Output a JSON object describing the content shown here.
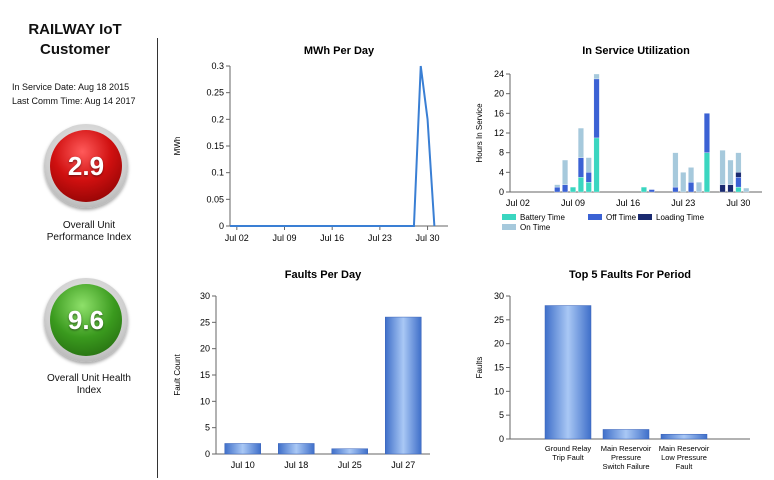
{
  "header": {
    "title_line1": "RAILWAY IoT",
    "title_line2": "Customer"
  },
  "meta": {
    "in_service": "In Service Date: Aug 18 2015",
    "last_comm": "Last Comm Time: Aug 14 2017"
  },
  "kpis": [
    {
      "value": "2.9",
      "label_line1": "Overall Unit",
      "label_line2": "Performance Index",
      "color": "#d01010"
    },
    {
      "value": "9.6",
      "label_line1": "Overall Unit Health",
      "label_line2": "Index",
      "color": "#3a9a1e"
    }
  ],
  "chart_data": [
    {
      "id": "mwh",
      "type": "line",
      "title": "MWh Per Day",
      "ylabel": "MWh",
      "ylim": [
        0,
        0.3
      ],
      "yticks": [
        "0",
        "0.05",
        "0.1",
        "0.15",
        "0.2",
        "0.25",
        "0.3"
      ],
      "xticks": [
        "Jul 02",
        "Jul 09",
        "Jul 16",
        "Jul 23",
        "Jul 30"
      ],
      "x": [
        1,
        2,
        3,
        4,
        5,
        6,
        7,
        8,
        9,
        10,
        11,
        12,
        13,
        14,
        15,
        16,
        17,
        18,
        19,
        20,
        21,
        22,
        23,
        24,
        25,
        26,
        27,
        28,
        29,
        30,
        31
      ],
      "values": [
        0,
        0,
        0,
        0,
        0,
        0,
        0,
        0,
        0,
        0,
        0,
        0,
        0,
        0,
        0,
        0,
        0,
        0,
        0,
        0,
        0,
        0,
        0,
        0,
        0,
        0,
        0,
        0,
        0.3,
        0.2,
        0
      ],
      "color": "#3a7fd4"
    },
    {
      "id": "util",
      "type": "bar",
      "title": "In Service Utilization",
      "ylabel": "Hours In Service",
      "ylim": [
        0,
        24
      ],
      "yticks": [
        "0",
        "4",
        "8",
        "12",
        "16",
        "20",
        "24"
      ],
      "xticks": [
        "Jul 02",
        "Jul 09",
        "Jul 16",
        "Jul 23",
        "Jul 30"
      ],
      "days": [
        7,
        8,
        9,
        10,
        11,
        12,
        13,
        14,
        15,
        16,
        17,
        18,
        19,
        20,
        21,
        22,
        23,
        24,
        25,
        26,
        27,
        28,
        29,
        30,
        31
      ],
      "series": [
        {
          "name": "Battery Time",
          "color": "#3ad6c0",
          "values": [
            0,
            0,
            1,
            3,
            2,
            11,
            0,
            0,
            0,
            0,
            0,
            1,
            0,
            0,
            0,
            0,
            0,
            0,
            0,
            8,
            0,
            0,
            0,
            1,
            0
          ]
        },
        {
          "name": "Off Time",
          "color": "#3b62d4",
          "values": [
            1,
            1.5,
            0,
            4,
            2,
            12,
            0,
            0,
            0,
            0,
            0,
            0,
            0.5,
            0,
            0,
            1,
            0,
            2,
            0,
            8,
            0,
            0,
            0,
            2,
            0
          ]
        },
        {
          "name": "Loading Time",
          "color": "#1a2a70",
          "values": [
            0,
            0,
            0,
            0,
            0,
            0,
            0,
            0,
            0,
            0,
            0,
            0,
            0,
            0,
            0,
            0,
            0,
            0,
            0,
            0,
            0,
            1.5,
            1.5,
            1,
            0
          ]
        },
        {
          "name": "On Time",
          "color": "#a6c9dc",
          "values": [
            0.5,
            5,
            0,
            6,
            3,
            1,
            0,
            0,
            0,
            0,
            0,
            0,
            0,
            0,
            0,
            7,
            4,
            3,
            2,
            0,
            0,
            7,
            5,
            4,
            0.8
          ]
        }
      ],
      "legend": "bottom"
    },
    {
      "id": "faults",
      "type": "bar",
      "title": "Faults Per Day",
      "ylabel": "Fault Count",
      "ylim": [
        0,
        30
      ],
      "yticks": [
        "0",
        "5",
        "10",
        "15",
        "20",
        "25",
        "30"
      ],
      "categories": [
        "Jul 10",
        "Jul 18",
        "Jul 25",
        "Jul 27"
      ],
      "values": [
        2,
        2,
        1,
        26
      ],
      "color": "#5a8fdc"
    },
    {
      "id": "top5",
      "type": "bar",
      "title": "Top 5 Faults For Period",
      "ylabel": "Faults",
      "ylim": [
        0,
        30
      ],
      "yticks": [
        "0",
        "5",
        "10",
        "15",
        "20",
        "25",
        "30"
      ],
      "categories": [
        [
          "Ground Relay",
          "Trip Fault"
        ],
        [
          "Main Reservoir",
          "Pressure",
          "Switch Failure"
        ],
        [
          "Main Reservoir",
          "Low Pressure",
          "Fault"
        ]
      ],
      "values": [
        28,
        2,
        1
      ],
      "color": "#5a8fdc"
    }
  ]
}
